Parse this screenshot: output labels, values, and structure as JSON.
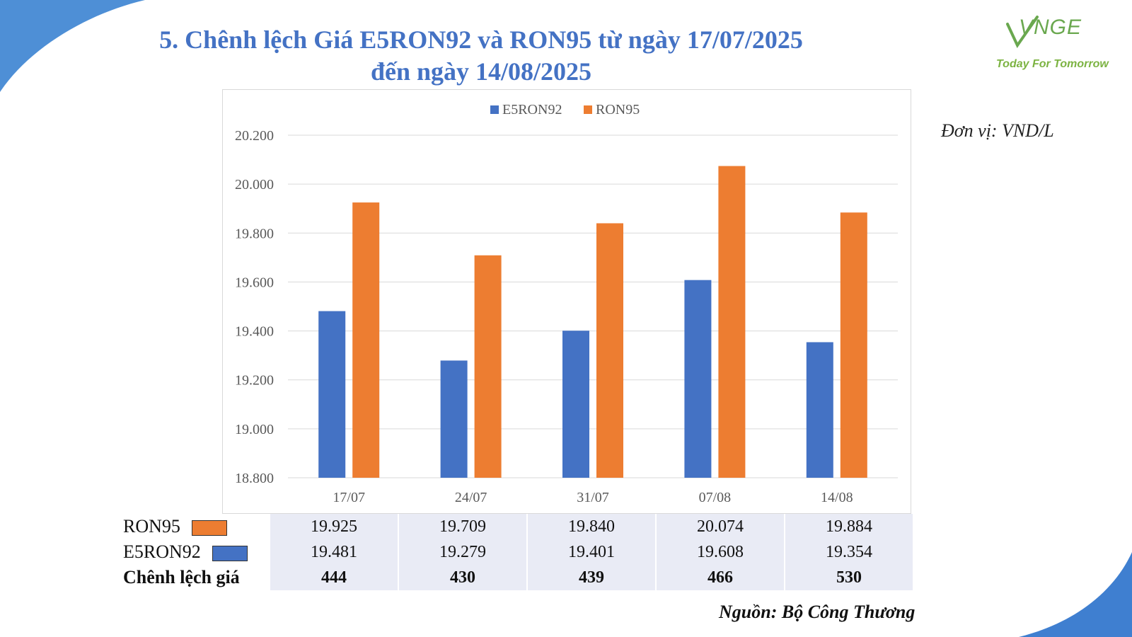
{
  "title_line1": "5. Chênh lệch Giá E5RON92 và RON95 từ ngày 17/07/2025",
  "title_line2": "đến ngày 14/08/2025",
  "logo": {
    "brand": "VNGE",
    "slogan": "Today For Tomorrow"
  },
  "unit_label": "Đơn vị: VND/L",
  "source_label": "Nguồn: Bộ Công Thương",
  "colors": {
    "e5ron92": "#4472c4",
    "ron95": "#ed7d31",
    "title": "#4472c4",
    "accent_blue": "#3f7fd0"
  },
  "chart_data": {
    "type": "bar",
    "categories": [
      "17/07",
      "24/07",
      "31/07",
      "07/08",
      "14/08"
    ],
    "series": [
      {
        "name": "E5RON92",
        "values": [
          19481,
          19279,
          19401,
          19608,
          19354
        ]
      },
      {
        "name": "RON95",
        "values": [
          19925,
          19709,
          19840,
          20074,
          19884
        ]
      }
    ],
    "ylim": [
      18800,
      20200
    ],
    "yticks": [
      "18.800",
      "19.000",
      "19.200",
      "19.400",
      "19.600",
      "19.800",
      "20.000",
      "20.200"
    ],
    "ytick_values": [
      18800,
      19000,
      19200,
      19400,
      19600,
      19800,
      20000,
      20200
    ],
    "legend_position": "top",
    "grid": true
  },
  "table": {
    "rows": [
      {
        "label": "RON95",
        "swatch": "#ed7d31",
        "values": [
          "19.925",
          "19.709",
          "19.840",
          "20.074",
          "19.884"
        ]
      },
      {
        "label": "E5RON92",
        "swatch": "#4472c4",
        "values": [
          "19.481",
          "19.279",
          "19.401",
          "19.608",
          "19.354"
        ]
      },
      {
        "label": "Chênh lệch giá",
        "values": [
          "444",
          "430",
          "439",
          "466",
          "530"
        ]
      }
    ]
  }
}
